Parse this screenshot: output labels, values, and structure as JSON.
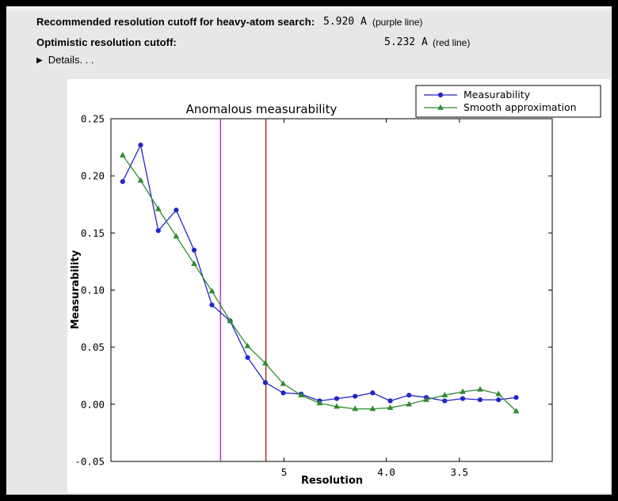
{
  "window": {
    "frame_color": "#000000",
    "panel_color": "#e7e7e7"
  },
  "header": {
    "rows": [
      {
        "label": "Recommended resolution cutoff for heavy-atom search:",
        "value": "5.920 A",
        "note": "(purple line)"
      },
      {
        "label": "Optimistic resolution cutoff:",
        "value": "5.232 A",
        "note": "(red line)"
      }
    ],
    "details": {
      "label": "Details. . ."
    }
  },
  "chart_data": {
    "type": "line",
    "title": "Anomalous measurability",
    "xlabel": "Resolution",
    "ylabel": "Measurability",
    "xscale": "reciprocal-resolution (1/d, d in Angstrom, decreasing left to right)",
    "xlim": [
      8.67,
      3.02
    ],
    "ylim": [
      -0.05,
      0.25
    ],
    "grid": false,
    "legend_position": "upper-right",
    "xticks": [
      {
        "label": "5",
        "value": 5.0
      },
      {
        "label": "4.0",
        "value": 4.0
      },
      {
        "label": "3.5",
        "value": 3.5
      }
    ],
    "yticks": [
      {
        "label": "-0.05",
        "value": -0.05
      },
      {
        "label": "0.00",
        "value": 0.0
      },
      {
        "label": "0.05",
        "value": 0.05
      },
      {
        "label": "0.10",
        "value": 0.1
      },
      {
        "label": "0.15",
        "value": 0.15
      },
      {
        "label": "0.20",
        "value": 0.2
      },
      {
        "label": "0.25",
        "value": 0.25
      }
    ],
    "vlines": [
      {
        "name": "recommended-cutoff-line",
        "value": 5.92,
        "color": "#bf3fbf",
        "meaning": "Recommended resolution cutoff for heavy-atom search (purple line)"
      },
      {
        "name": "optimistic-cutoff-line",
        "value": 5.232,
        "color": "#9c422a",
        "meaning": "Optimistic resolution cutoff (red line)"
      }
    ],
    "x_resolution": [
      8.26,
      7.7,
      7.22,
      6.79,
      6.41,
      6.07,
      5.76,
      5.49,
      5.24,
      5.01,
      4.8,
      4.6,
      4.43,
      4.26,
      4.11,
      3.97,
      3.83,
      3.71,
      3.59,
      3.48,
      3.38,
      3.28,
      3.19
    ],
    "series": [
      {
        "name": "Measurability",
        "color": "#2424cc",
        "marker": "circle",
        "values": [
          0.195,
          0.227,
          0.152,
          0.17,
          0.135,
          0.087,
          0.073,
          0.041,
          0.019,
          0.01,
          0.009,
          0.003,
          0.005,
          0.007,
          0.01,
          0.003,
          0.008,
          0.006,
          0.003,
          0.005,
          0.004,
          0.004,
          0.006
        ]
      },
      {
        "name": "Smooth approximation",
        "color": "#2e8b2e",
        "marker": "triangle",
        "values": [
          0.218,
          0.196,
          0.171,
          0.147,
          0.123,
          0.099,
          0.073,
          0.051,
          0.036,
          0.018,
          0.008,
          0.001,
          -0.002,
          -0.004,
          -0.004,
          -0.003,
          0.0,
          0.004,
          0.008,
          0.011,
          0.013,
          0.009,
          -0.006
        ]
      }
    ]
  }
}
